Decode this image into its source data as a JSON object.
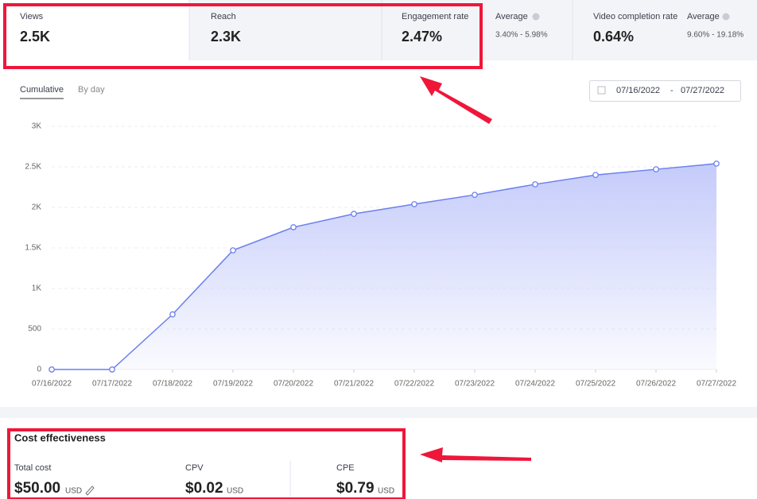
{
  "metrics": [
    {
      "label": "Views",
      "value": "2.5K"
    },
    {
      "label": "Reach",
      "value": "2.3K"
    },
    {
      "label": "Engagement rate",
      "value": "2.47%"
    },
    {
      "label": "Average",
      "value": "3.40% - 5.98%"
    },
    {
      "label": "Video completion rate",
      "value": "0.64%"
    },
    {
      "label": "Average",
      "value": "9.60% - 19.18%"
    }
  ],
  "tabs": [
    "Cumulative",
    "By day"
  ],
  "date_range": {
    "start": "07/16/2022",
    "separator": "-",
    "end": "07/27/2022"
  },
  "chart_data": {
    "type": "line",
    "color": "#6b7ff0",
    "grid": true,
    "categories": [
      "07/16/2022",
      "07/17/2022",
      "07/18/2022",
      "07/19/2022",
      "07/20/2022",
      "07/21/2022",
      "07/22/2022",
      "07/23/2022",
      "07/24/2022",
      "07/25/2022",
      "07/26/2022",
      "07/27/2022"
    ],
    "values": [
      0,
      0,
      680,
      1470,
      1755,
      1920,
      2040,
      2155,
      2285,
      2400,
      2470,
      2540
    ],
    "ylim": [
      0,
      3000
    ],
    "yticks": [
      0,
      500,
      {
        "value": 1000,
        "label": "1K"
      },
      {
        "value": 1500,
        "label": "1.5K"
      },
      {
        "value": 2000,
        "label": "2K"
      },
      {
        "value": 2500,
        "label": "2.5K"
      },
      {
        "value": 3000,
        "label": "3K"
      }
    ]
  },
  "cost": {
    "title": "Cost effectiveness",
    "items": [
      {
        "label": "Total cost",
        "value": "$50.00",
        "unit": "USD"
      },
      {
        "label": "CPV",
        "value": "$0.02",
        "unit": "USD"
      },
      {
        "label": "CPE",
        "value": "$0.79",
        "unit": "USD"
      }
    ]
  }
}
